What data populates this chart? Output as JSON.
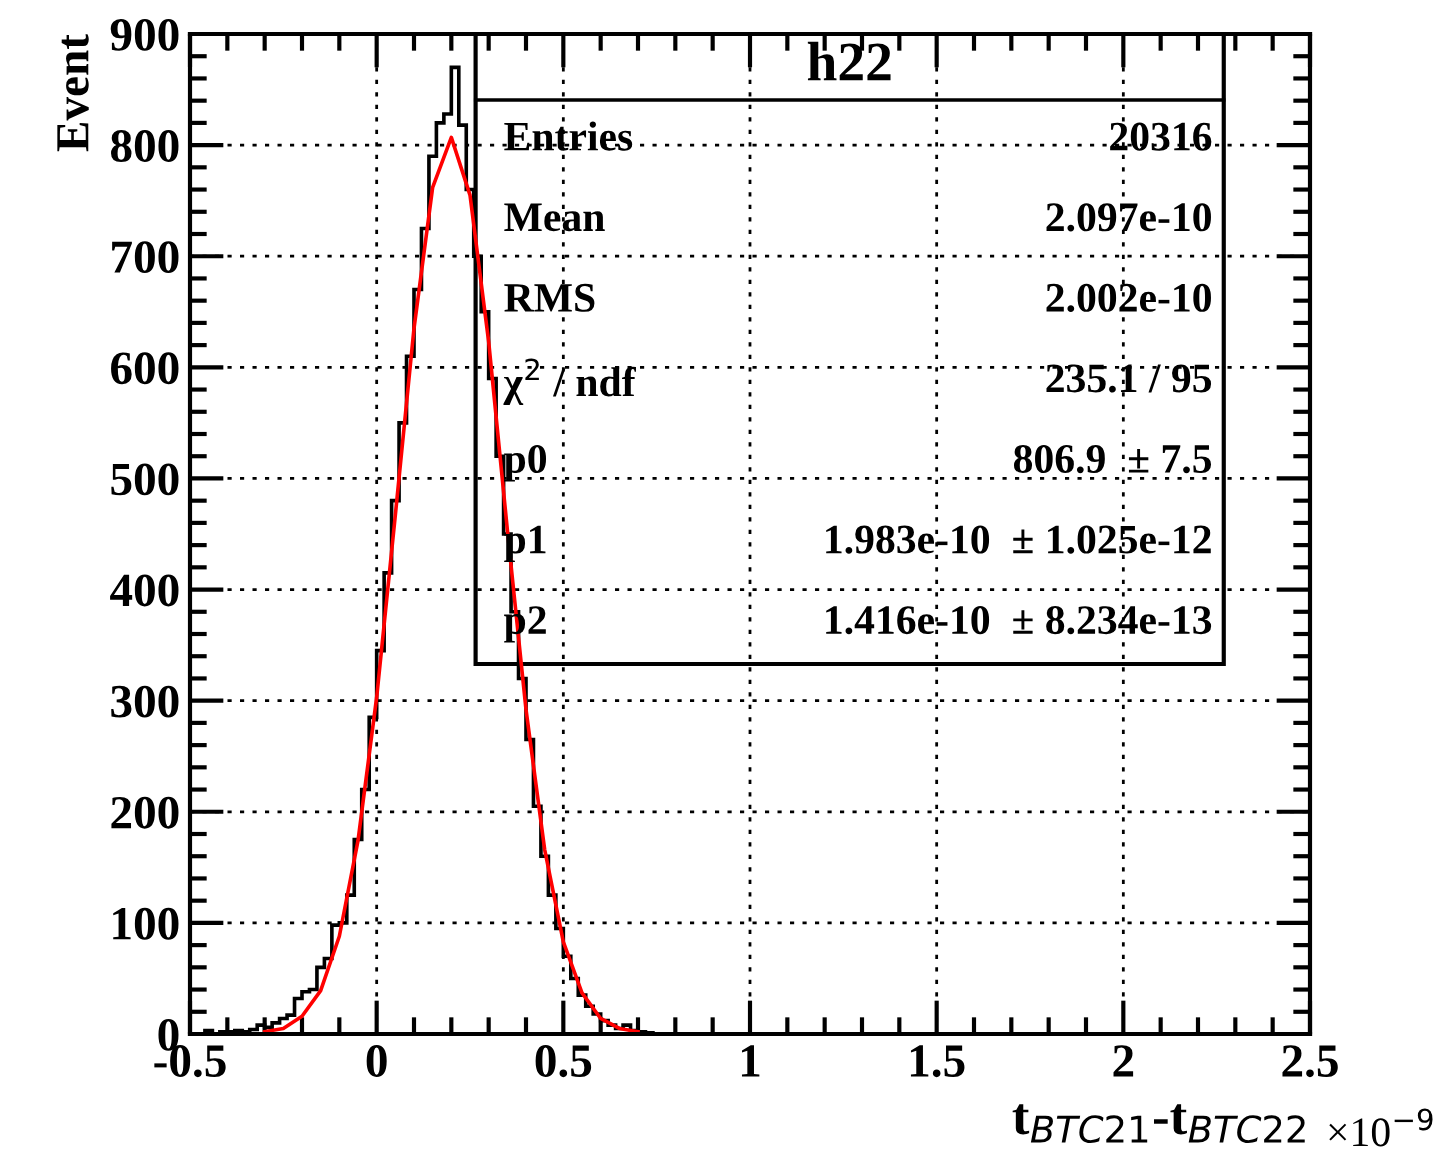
{
  "chart_data": {
    "type": "histogram",
    "xlabel": "t$_{BTC21}$-t$_{BTC22}$",
    "ylabel": "Event",
    "bins": [
      -0.5,
      -0.48,
      -0.46,
      -0.44,
      -0.42,
      -0.4,
      -0.38,
      -0.36,
      -0.34,
      -0.32,
      -0.3,
      -0.28,
      -0.26,
      -0.24,
      -0.22,
      -0.2,
      -0.18,
      -0.16,
      -0.14,
      -0.12,
      -0.1,
      -0.08,
      -0.06,
      -0.04,
      -0.02,
      0,
      0.02,
      0.04,
      0.06,
      0.08,
      0.1,
      0.12,
      0.14,
      0.16,
      0.18,
      0.2,
      0.22,
      0.24,
      0.26,
      0.28,
      0.3,
      0.32,
      0.34,
      0.36,
      0.38,
      0.4,
      0.42,
      0.44,
      0.46,
      0.48,
      0.5,
      0.52,
      0.54,
      0.56,
      0.58,
      0.6,
      0.62,
      0.64,
      0.66,
      0.68,
      0.7,
      0.72,
      0.74,
      0.76,
      0.78,
      0.8
    ],
    "series": [
      {
        "color": "#000000",
        "values": [
          0,
          0,
          3,
          0,
          2,
          2,
          3,
          2,
          4,
          8,
          6,
          10,
          14,
          17,
          32,
          38,
          40,
          60,
          68,
          98,
          100,
          125,
          175,
          220,
          285,
          345,
          415,
          480,
          550,
          610,
          670,
          725,
          790,
          820,
          828,
          870,
          818,
          760,
          700,
          650,
          590,
          520,
          450,
          380,
          320,
          265,
          205,
          160,
          125,
          95,
          70,
          50,
          35,
          25,
          18,
          12,
          8,
          5,
          8,
          3,
          2,
          1,
          0,
          0,
          0
        ]
      },
      {
        "type": "line",
        "color": "#ff0000",
        "x": [
          -0.3,
          -0.25,
          -0.2,
          -0.15,
          -0.1,
          -0.05,
          0,
          0.05,
          0.1,
          0.15,
          0.2,
          0.25,
          0.3,
          0.35,
          0.4,
          0.45,
          0.5,
          0.55,
          0.6,
          0.65,
          0.7
        ],
        "values": [
          2,
          5,
          16,
          39,
          88,
          174,
          303,
          467,
          635,
          762,
          807,
          755,
          623,
          454,
          292,
          166,
          83,
          37,
          14,
          5,
          2
        ]
      }
    ],
    "xlim": [
      -0.5,
      2.5
    ],
    "xticks": [
      -0.5,
      0,
      0.5,
      1,
      1.5,
      2,
      2.5
    ],
    "ylim": [
      0,
      900
    ],
    "yticks": [
      0,
      100,
      200,
      300,
      400,
      500,
      600,
      700,
      800,
      900
    ],
    "grid": true,
    "annotations": [
      "×10$^{−9}$",
      "h22",
      "Entries",
      "20316",
      "Mean",
      "2.097e-10",
      "RMS",
      "2.002e-10",
      "χ$^{2}$ / ndf",
      "235.1 / 95",
      "p0",
      "806.9  ± 7.5",
      "p1",
      "1.983e-10  ± 1.025e-12",
      "p2",
      "1.416e-10  ± 8.234e-13"
    ]
  }
}
